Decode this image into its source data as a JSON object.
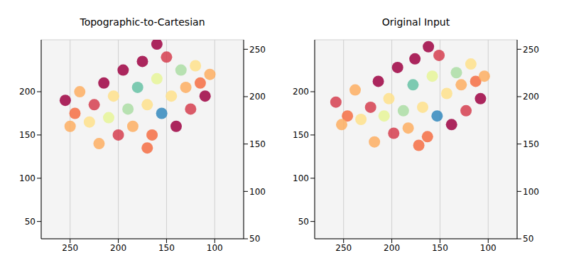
{
  "chart_data": [
    {
      "type": "scatter",
      "title": "Topographic-to-Cartesian",
      "marker": "circle",
      "grid": true,
      "x": [
        255,
        245,
        240,
        230,
        225,
        215,
        210,
        205,
        200,
        195,
        190,
        185,
        180,
        175,
        170,
        165,
        160,
        155,
        150,
        145,
        140,
        135,
        130,
        125,
        120,
        115,
        110,
        105,
        220,
        170,
        250,
        160
      ],
      "values": [
        190,
        175,
        200,
        165,
        185,
        210,
        170,
        195,
        150,
        225,
        180,
        160,
        205,
        235,
        185,
        150,
        215,
        175,
        240,
        195,
        160,
        225,
        205,
        180,
        230,
        210,
        195,
        220,
        140,
        135,
        160,
        255
      ],
      "colors": [
        "#9e0142",
        "#f46d43",
        "#fdae61",
        "#fee08b",
        "#d53e4f",
        "#9e0142",
        "#e6f598",
        "#fee08b",
        "#d53e4f",
        "#9e0142",
        "#abdda4",
        "#fdae61",
        "#66c2a5",
        "#9e0142",
        "#fee08b",
        "#f46d43",
        "#e6f598",
        "#3288bd",
        "#d53e4f",
        "#fee08b",
        "#9e0142",
        "#abdda4",
        "#fdae61",
        "#d53e4f",
        "#fee08b",
        "#f46d43",
        "#9e0142",
        "#fdae61",
        "#fdae61",
        "#f46d43",
        "#fdae61",
        "#9e0142"
      ],
      "xlim": [
        280,
        70
      ],
      "xticks": [
        250,
        200,
        150,
        100
      ],
      "ylim": [
        30,
        260
      ],
      "yticks": [
        50,
        100,
        150,
        200
      ],
      "y2lim": [
        50,
        260
      ],
      "y2ticks": [
        50,
        100,
        150,
        200,
        250
      ]
    },
    {
      "type": "scatter",
      "title": "Original Input",
      "marker": "circle",
      "grid": true,
      "x": [
        258,
        246,
        238,
        232,
        222,
        214,
        208,
        203,
        198,
        194,
        188,
        183,
        178,
        176,
        168,
        163,
        158,
        153,
        151,
        143,
        138,
        133,
        128,
        123,
        118,
        113,
        108,
        104,
        218,
        172,
        252,
        162
      ],
      "values": [
        188,
        172,
        202,
        168,
        182,
        212,
        172,
        192,
        152,
        228,
        178,
        158,
        208,
        238,
        182,
        148,
        218,
        172,
        242,
        198,
        162,
        222,
        208,
        178,
        232,
        212,
        192,
        218,
        142,
        138,
        162,
        252
      ],
      "colors": [
        "#d53e4f",
        "#f46d43",
        "#fdae61",
        "#fee08b",
        "#d53e4f",
        "#9e0142",
        "#e6f598",
        "#fee08b",
        "#d53e4f",
        "#9e0142",
        "#abdda4",
        "#fdae61",
        "#66c2a5",
        "#9e0142",
        "#fee08b",
        "#f46d43",
        "#e6f598",
        "#3288bd",
        "#d53e4f",
        "#fee08b",
        "#9e0142",
        "#abdda4",
        "#fdae61",
        "#d53e4f",
        "#fee08b",
        "#f46d43",
        "#9e0142",
        "#fdae61",
        "#fdae61",
        "#f46d43",
        "#fdae61",
        "#9e0142"
      ],
      "xlim": [
        280,
        70
      ],
      "xticks": [
        250,
        200,
        150,
        100
      ],
      "ylim": [
        30,
        260
      ],
      "yticks": [
        50,
        100,
        150,
        200
      ],
      "y2lim": [
        50,
        260
      ],
      "y2ticks": [
        50,
        100,
        150,
        200,
        250
      ]
    }
  ]
}
